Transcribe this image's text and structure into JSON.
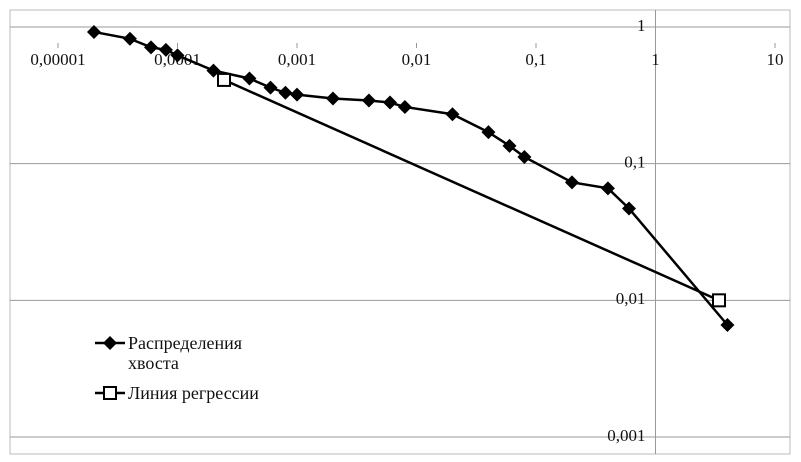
{
  "chart_data": {
    "type": "line",
    "x_scale": "log",
    "y_scale": "log",
    "xlim": [
      1e-05,
      10
    ],
    "ylim": [
      0.001,
      1
    ],
    "xticks": [
      {
        "value": 1e-05,
        "label": "0,00001"
      },
      {
        "value": 0.0001,
        "label": "0,0001"
      },
      {
        "value": 0.001,
        "label": "0,001"
      },
      {
        "value": 0.01,
        "label": "0,01"
      },
      {
        "value": 0.1,
        "label": "0,1"
      },
      1,
      10
    ],
    "yticks": [
      {
        "value": 0.001,
        "label": "0,001"
      },
      {
        "value": 0.01,
        "label": "0,01"
      },
      {
        "value": 0.1,
        "label": "0,1"
      },
      1
    ],
    "grid": true,
    "series": [
      {
        "name": "Распределения хвоста",
        "color": "#000000",
        "marker": "diamond",
        "x": [
          2e-05,
          4e-05,
          6e-05,
          8e-05,
          0.0001,
          0.0002,
          0.0004,
          0.0006,
          0.0008,
          0.001,
          0.002,
          0.004,
          0.006,
          0.008,
          0.02,
          0.04,
          0.06,
          0.08,
          0.2,
          0.4,
          0.6,
          4
        ],
        "values": [
          0.92,
          0.82,
          0.71,
          0.68,
          0.62,
          0.48,
          0.42,
          0.36,
          0.33,
          0.32,
          0.3,
          0.29,
          0.28,
          0.26,
          0.23,
          0.17,
          0.135,
          0.112,
          0.073,
          0.066,
          0.047,
          0.0066
        ]
      },
      {
        "name": "Линия регрессии",
        "color": "#000000",
        "marker": "square",
        "x": [
          0.000245,
          3.4
        ],
        "values": [
          0.41,
          0.01
        ]
      }
    ]
  }
}
